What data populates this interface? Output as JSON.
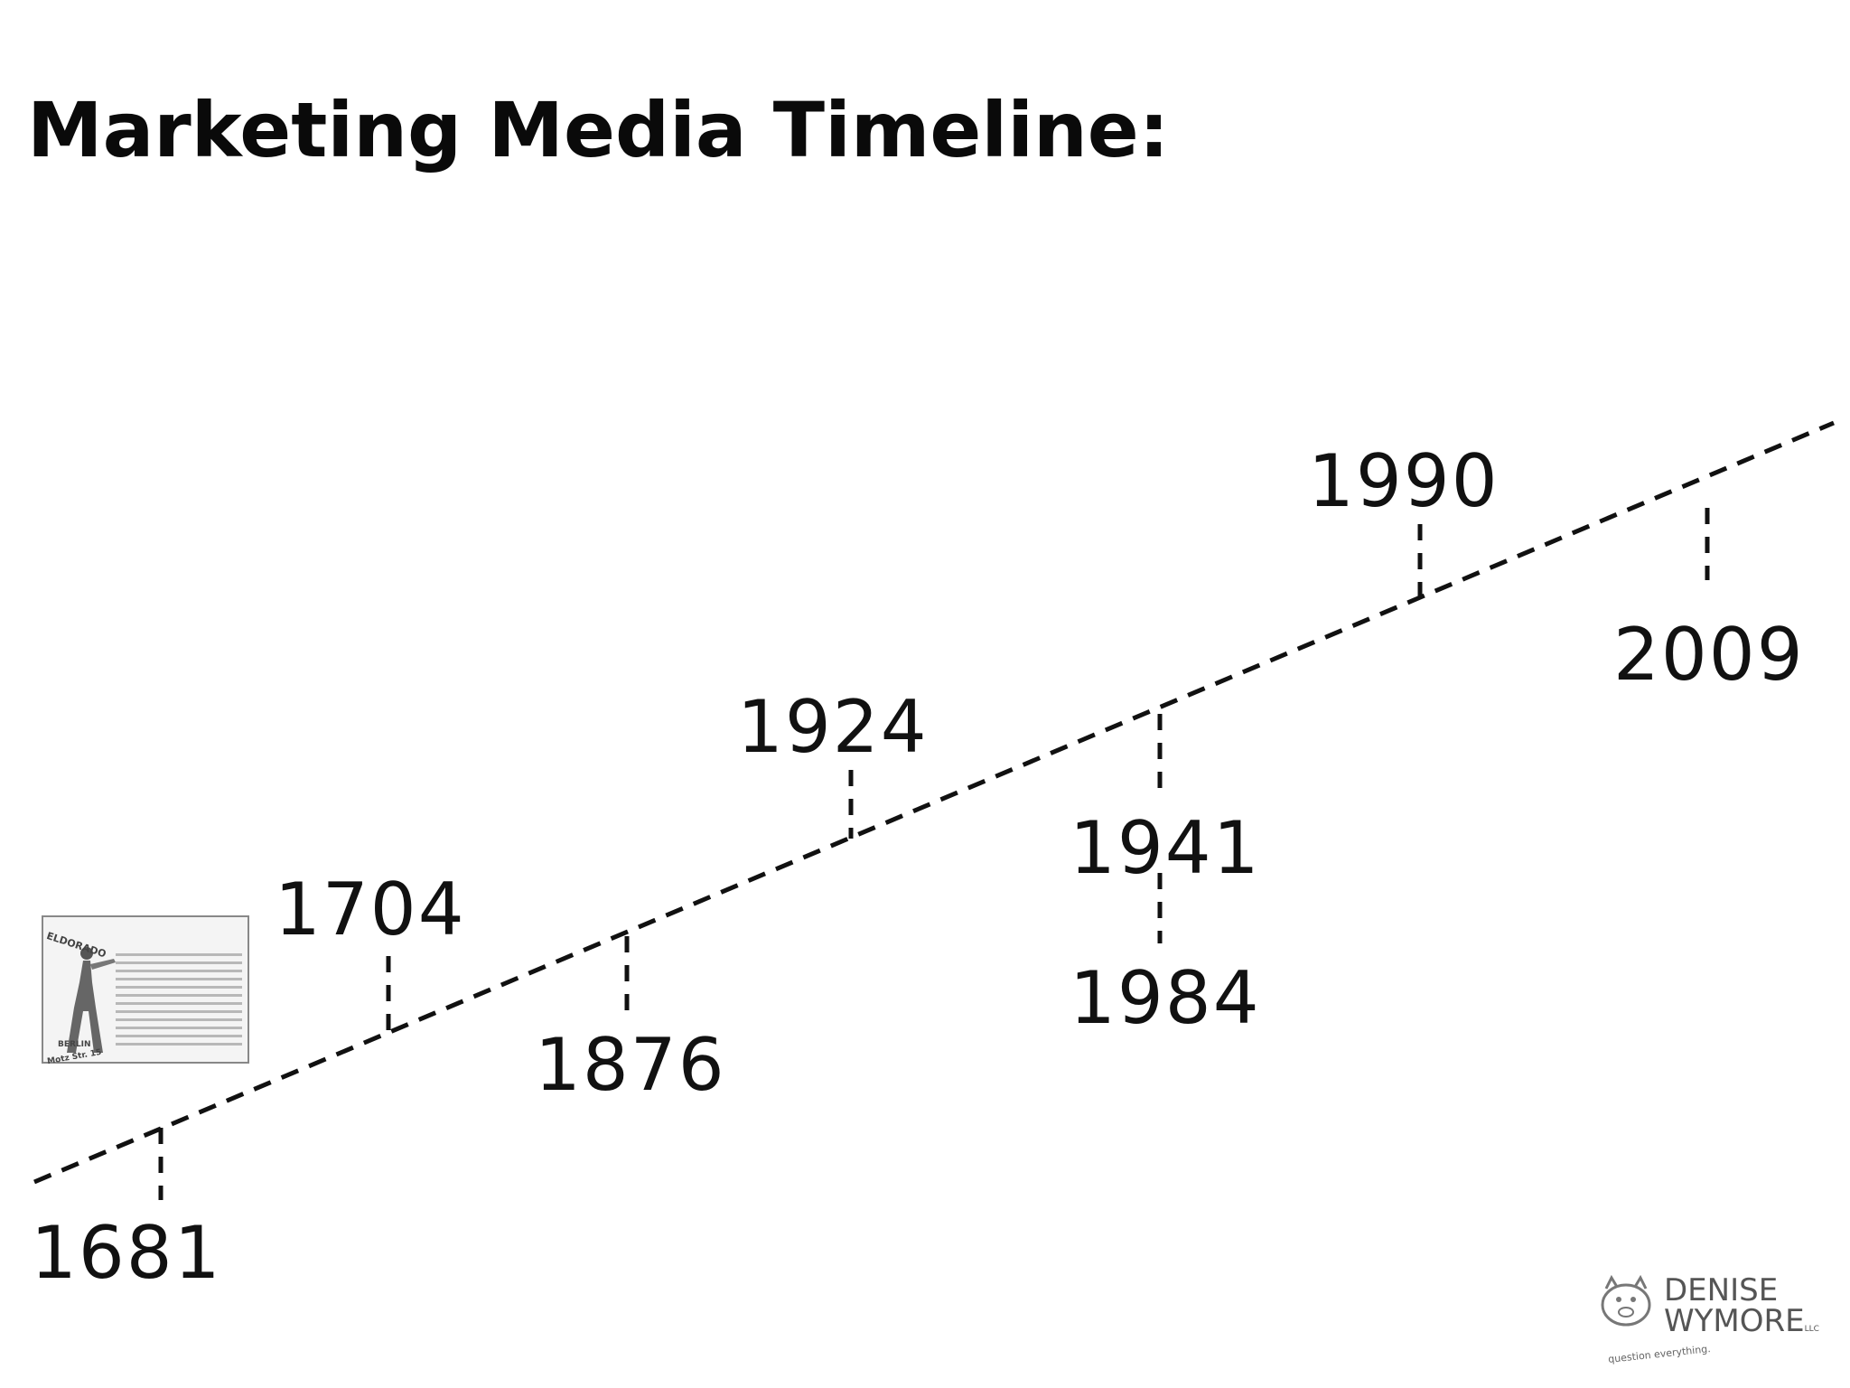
{
  "slide": {
    "title": "Marketing Media Timeline:"
  },
  "timeline": {
    "events": [
      {
        "year": "1681",
        "side": "below"
      },
      {
        "year": "1704",
        "side": "above"
      },
      {
        "year": "1876",
        "side": "below"
      },
      {
        "year": "1924",
        "side": "above"
      },
      {
        "year": "1941",
        "side": "below"
      },
      {
        "year": "1984",
        "side": "below"
      },
      {
        "year": "1990",
        "side": "above"
      },
      {
        "year": "2009",
        "side": "below"
      }
    ]
  },
  "poster": {
    "heading": "ELDORADO",
    "footer_city": "BERLIN",
    "footer_street": "Motz Str. 15"
  },
  "logo": {
    "line1": "DENISE",
    "line2": "WYMORE",
    "suffix": "LLC",
    "tagline": "question everything."
  },
  "colors": {
    "text": "#111111",
    "background": "#ffffff"
  }
}
